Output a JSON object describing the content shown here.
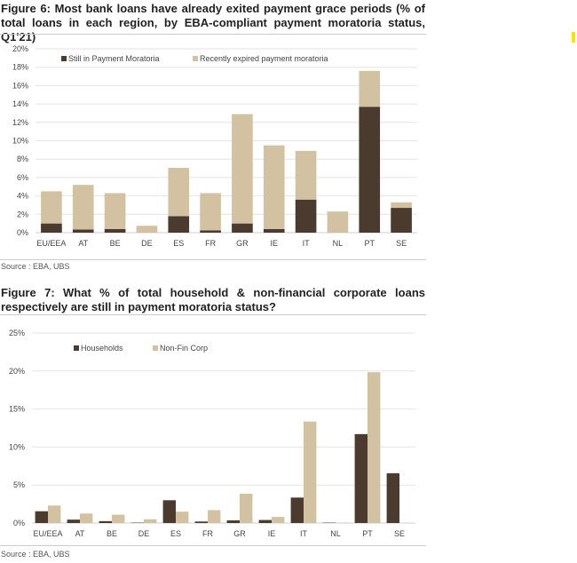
{
  "chart_data": [
    {
      "type": "bar",
      "stacked": true,
      "title": "Figure 6: Most bank loans have already exited payment grace periods (% of total loans in each region, by EBA-compliant payment moratoria status, Q1'21)",
      "source": "Source : EBA, UBS",
      "categories": [
        "EU/EEA",
        "AT",
        "BE",
        "DE",
        "ES",
        "FR",
        "GR",
        "IE",
        "IT",
        "NL",
        "PT",
        "SE"
      ],
      "series": [
        {
          "name": "Still in Payment Moratoria",
          "color": "#4a3b2e",
          "values": [
            1.0,
            0.35,
            0.4,
            0.0,
            1.8,
            0.25,
            1.0,
            0.4,
            3.6,
            0.0,
            13.7,
            2.7
          ]
        },
        {
          "name": "Recently expired payment moratoria",
          "color": "#d2c2a2",
          "values": [
            3.5,
            4.85,
            3.9,
            0.75,
            5.25,
            4.05,
            11.9,
            9.1,
            5.3,
            2.3,
            3.9,
            0.6
          ]
        }
      ],
      "yticks": [
        "0%",
        "2%",
        "4%",
        "6%",
        "8%",
        "10%",
        "12%",
        "14%",
        "16%",
        "18%",
        "20%"
      ],
      "ylim": [
        0,
        20
      ],
      "legend": "top",
      "grid": true
    },
    {
      "type": "bar",
      "stacked": false,
      "title": "Figure 7: What % of total household & non-financial corporate loans respectively are still in payment moratoria status?",
      "source": "Source : EBA, UBS",
      "categories": [
        "EU/EEA",
        "AT",
        "BE",
        "DE",
        "ES",
        "FR",
        "GR",
        "IE",
        "IT",
        "NL",
        "PT",
        "SE"
      ],
      "series": [
        {
          "name": "Households",
          "color": "#4a3b2e",
          "values": [
            1.55,
            0.45,
            0.25,
            0.05,
            3.0,
            0.2,
            0.35,
            0.4,
            3.35,
            0.05,
            11.7,
            6.55
          ]
        },
        {
          "name": "Non-Fin Corp",
          "color": "#d2c2a2",
          "values": [
            2.3,
            1.25,
            1.1,
            0.5,
            1.5,
            1.7,
            3.85,
            0.8,
            13.35,
            0.05,
            19.85,
            0.0
          ]
        }
      ],
      "yticks": [
        "0%",
        "5%",
        "10%",
        "15%",
        "20%",
        "25%"
      ],
      "ylim": [
        0,
        25
      ],
      "legend": "top-left",
      "grid": true
    }
  ]
}
